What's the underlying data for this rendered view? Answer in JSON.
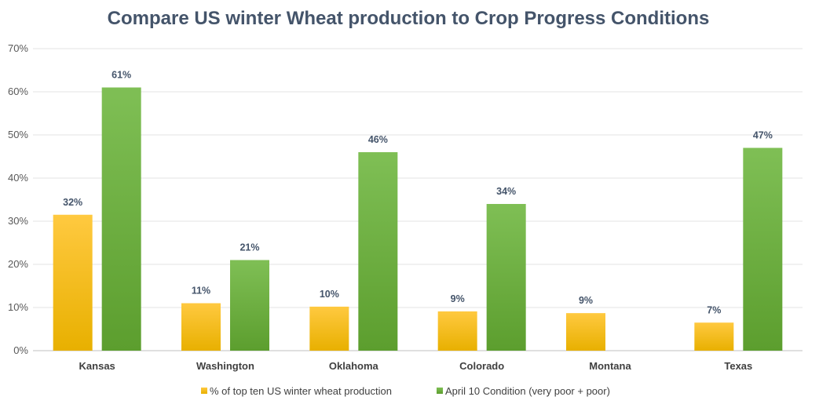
{
  "chart_data": {
    "type": "bar",
    "title": "Compare US winter Wheat production to Crop Progress Conditions",
    "xlabel": "",
    "ylabel": "",
    "ylim": [
      0,
      70
    ],
    "yticks": [
      "0%",
      "10%",
      "20%",
      "30%",
      "40%",
      "50%",
      "60%",
      "70%"
    ],
    "categories": [
      "Kansas",
      "Washington",
      "Oklahoma",
      "Colorado",
      "Montana",
      "Texas"
    ],
    "series": [
      {
        "name": "% of top ten US winter wheat production",
        "values": [
          31.5,
          11,
          10.2,
          9.1,
          8.7,
          6.5
        ],
        "labels": [
          "32%",
          "11%",
          "10%",
          "9%",
          "9%",
          "7%"
        ],
        "color": "#f5b800"
      },
      {
        "name": "April 10 Condition (very poor + poor)",
        "values": [
          61,
          21,
          46,
          34,
          null,
          47
        ],
        "labels": [
          "61%",
          "21%",
          "46%",
          "34%",
          null,
          "47%"
        ],
        "color": "#6aab3a"
      }
    ],
    "legend_position": "bottom",
    "grid": true
  }
}
